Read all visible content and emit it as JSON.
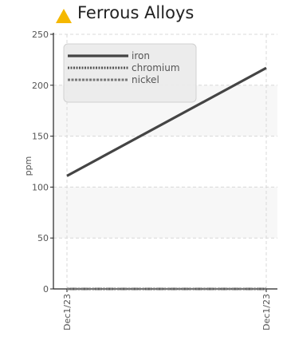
{
  "header": {
    "title": "Ferrous Alloys",
    "icon": "warning-triangle-icon",
    "icon_color": "#f5b800"
  },
  "chart_data": {
    "type": "line",
    "title": "Ferrous Alloys",
    "xlabel": "",
    "ylabel": "ppm",
    "ylim": [
      0,
      250
    ],
    "yticks": [
      0,
      50,
      100,
      150,
      200,
      250
    ],
    "x": [
      "Dec1/23",
      "Dec1/23"
    ],
    "grid": true,
    "legend_position": "top-left",
    "series": [
      {
        "name": "iron",
        "values": [
          111,
          217
        ],
        "color": "#444444",
        "style": "solid"
      },
      {
        "name": "chromium",
        "values": [
          0,
          0
        ],
        "color": "#555555",
        "style": "dotted"
      },
      {
        "name": "nickel",
        "values": [
          0,
          0
        ],
        "color": "#777777",
        "style": "dashed"
      }
    ]
  }
}
